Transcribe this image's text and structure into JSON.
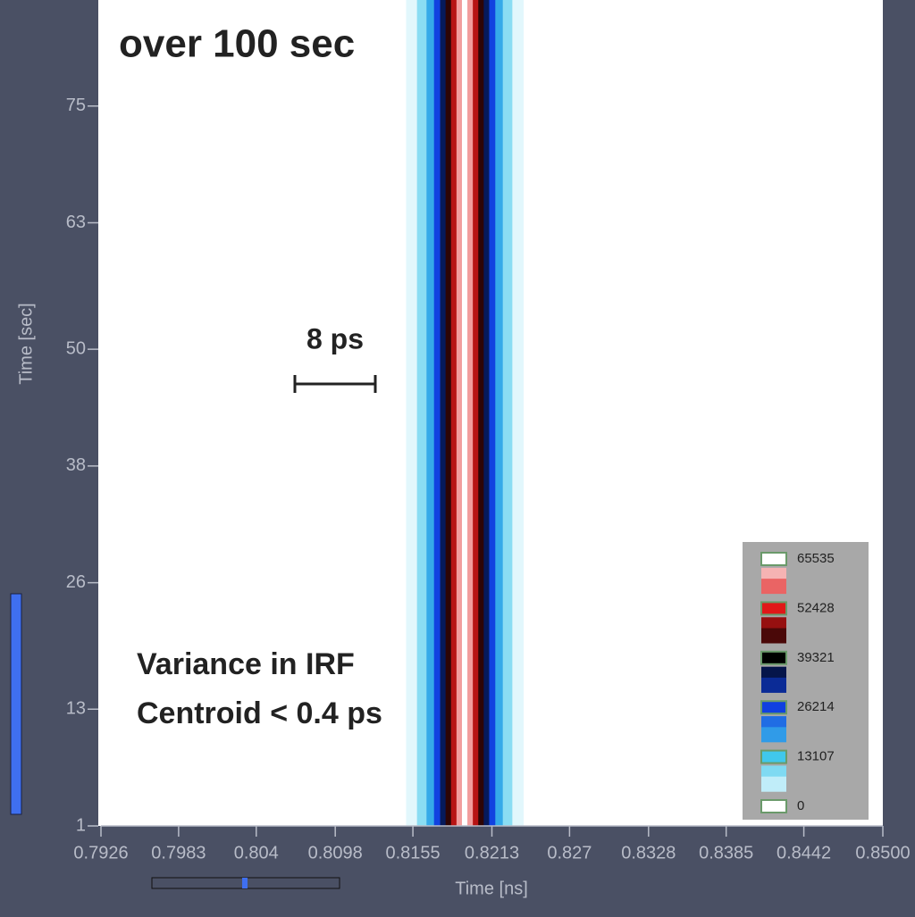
{
  "chart_data": {
    "type": "heatmap-profile",
    "annotations": [
      "over 100 sec",
      "8 ps",
      "Variance in IRF",
      "Centroid < 0.4 ps"
    ],
    "x_label": "Time [ns]",
    "y_label": "Time [sec]",
    "xlim": [
      0.7926,
      0.85
    ],
    "xticks": [
      0.7926,
      0.7983,
      0.804,
      0.8098,
      0.8155,
      0.8213,
      0.827,
      0.8328,
      0.8385,
      0.8442,
      {
        "value": 0.85,
        "label": "0.8500"
      }
    ],
    "ylim": [
      1,
      85.9
    ],
    "yticks": [
      1,
      13,
      26,
      38,
      50,
      63,
      75
    ],
    "profile": {
      "x": [
        0.8154,
        0.8162,
        0.8168,
        0.8173,
        0.8177,
        0.8181,
        0.8185,
        0.8189,
        0.8193,
        0.8197,
        0.8201,
        0.8205,
        0.8209,
        0.8213,
        0.8218,
        0.8224,
        0.8232
      ],
      "values": [
        2000,
        8000,
        16000,
        26000,
        34000,
        42000,
        50000,
        60000,
        65535,
        60000,
        50000,
        42000,
        34000,
        26000,
        16000,
        8000,
        2000
      ]
    },
    "colorbar": {
      "ticks": [
        65535,
        52428,
        39321,
        26214,
        13107,
        0
      ],
      "colors": [
        "#ffffff",
        "#e01818",
        "#000000",
        "#1040e0",
        "#40c8ec",
        "#ffffff"
      ]
    }
  }
}
